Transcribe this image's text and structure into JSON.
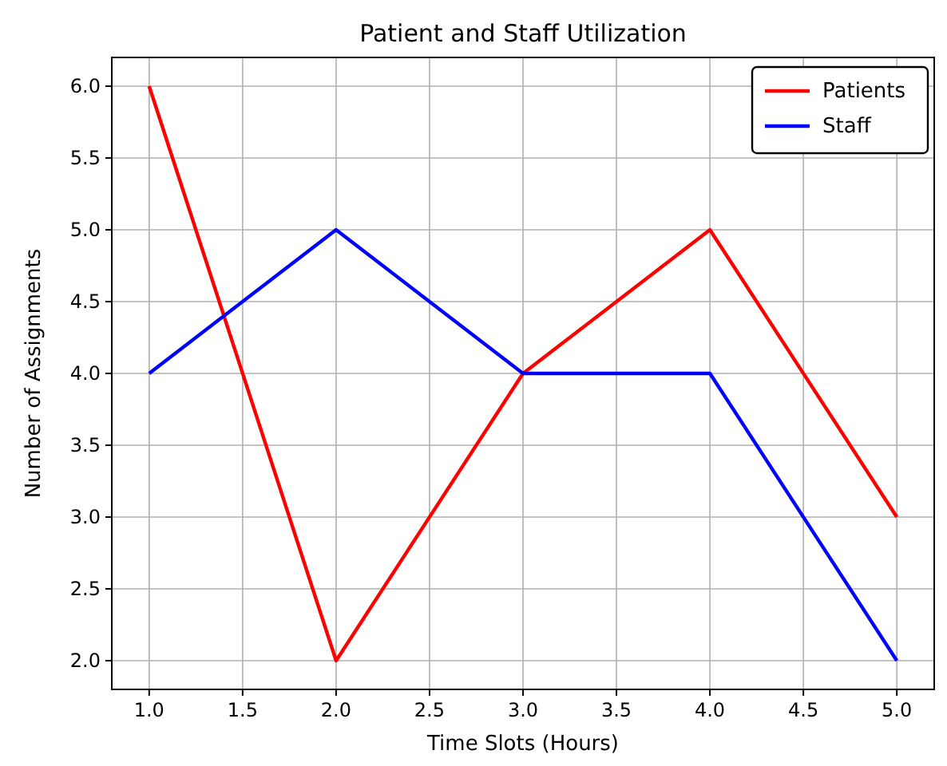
{
  "chart_data": {
    "type": "line",
    "title": "Patient and Staff Utilization",
    "xlabel": "Time Slots (Hours)",
    "ylabel": "Number of Assignments",
    "x": [
      1,
      2,
      3,
      4,
      5
    ],
    "series": [
      {
        "name": "Patients",
        "color": "#ff0000",
        "values": [
          6,
          2,
          4,
          5,
          3
        ]
      },
      {
        "name": "Staff",
        "color": "#0000ff",
        "values": [
          4,
          5,
          4,
          4,
          2
        ]
      }
    ],
    "xlim": [
      0.8,
      5.2
    ],
    "ylim": [
      1.8,
      6.2
    ],
    "xticks": [
      {
        "value": 1,
        "label": "1.0"
      },
      {
        "value": 1.5,
        "label": "1.5"
      },
      {
        "value": 2,
        "label": "2.0"
      },
      {
        "value": 2.5,
        "label": "2.5"
      },
      {
        "value": 3,
        "label": "3.0"
      },
      {
        "value": 3.5,
        "label": "3.5"
      },
      {
        "value": 4,
        "label": "4.0"
      },
      {
        "value": 4.5,
        "label": "4.5"
      },
      {
        "value": 5,
        "label": "5.0"
      }
    ],
    "yticks": [
      {
        "value": 2,
        "label": "2.0"
      },
      {
        "value": 2.5,
        "label": "2.5"
      },
      {
        "value": 3,
        "label": "3.0"
      },
      {
        "value": 3.5,
        "label": "3.5"
      },
      {
        "value": 4,
        "label": "4.0"
      },
      {
        "value": 4.5,
        "label": "4.5"
      },
      {
        "value": 5,
        "label": "5.0"
      },
      {
        "value": 5.5,
        "label": "5.5"
      },
      {
        "value": 6,
        "label": "6.0"
      }
    ],
    "grid": true,
    "legend": "top right",
    "marker": "none",
    "line_style": "solid"
  }
}
